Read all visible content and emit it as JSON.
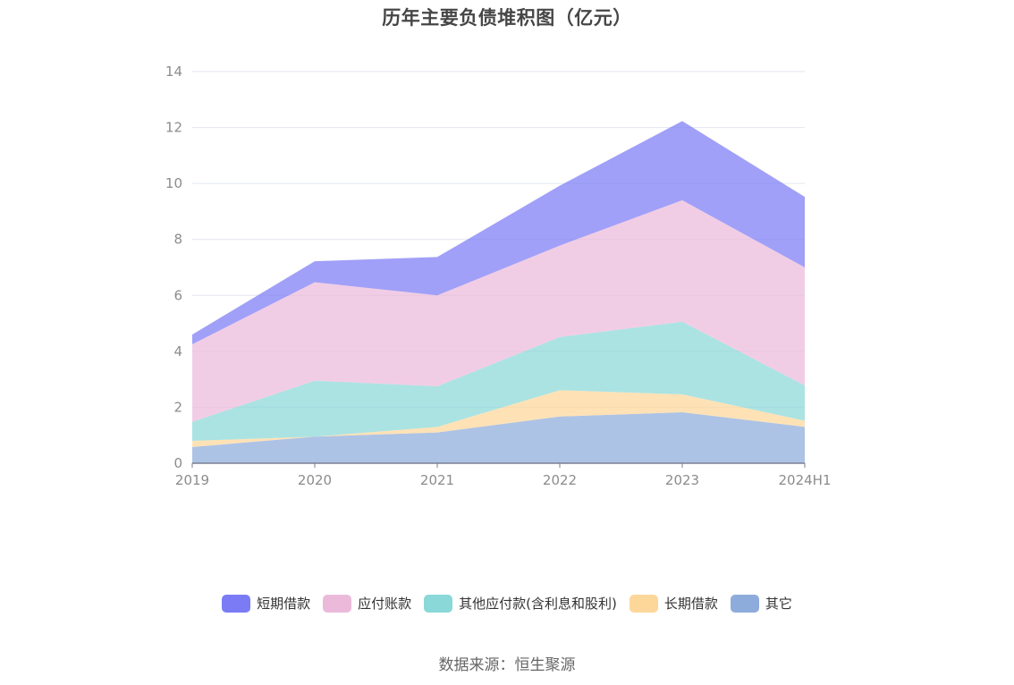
{
  "chart_data": {
    "type": "area",
    "stacked": true,
    "title": "历年主要负债堆积图（亿元）",
    "categories": [
      "2019",
      "2020",
      "2021",
      "2022",
      "2023",
      "2024H1"
    ],
    "ylim": [
      0,
      14
    ],
    "yticks": [
      0,
      2,
      4,
      6,
      8,
      10,
      12,
      14
    ],
    "grid": true,
    "legend_position": "bottom",
    "series": [
      {
        "name": "其它",
        "color": "#8eacdb",
        "values": [
          0.58,
          0.95,
          1.1,
          1.67,
          1.82,
          1.3
        ]
      },
      {
        "name": "长期借款",
        "color": "#fdd79a",
        "values": [
          0.22,
          0.0,
          0.2,
          0.94,
          0.64,
          0.22
        ]
      },
      {
        "name": "其他应付款(含利息和股利)",
        "color": "#8ad8d8",
        "values": [
          0.68,
          2.0,
          1.45,
          1.9,
          2.6,
          1.26
        ]
      },
      {
        "name": "应付账款",
        "color": "#ebbadb",
        "values": [
          2.77,
          3.52,
          3.25,
          3.27,
          4.34,
          4.22
        ]
      },
      {
        "name": "短期借款",
        "color": "#7b7cf5",
        "values": [
          0.35,
          0.75,
          1.37,
          2.14,
          2.83,
          2.52
        ]
      }
    ]
  },
  "legend_order": [
    4,
    3,
    2,
    1,
    0
  ],
  "source_note": "数据来源：恒生聚源"
}
